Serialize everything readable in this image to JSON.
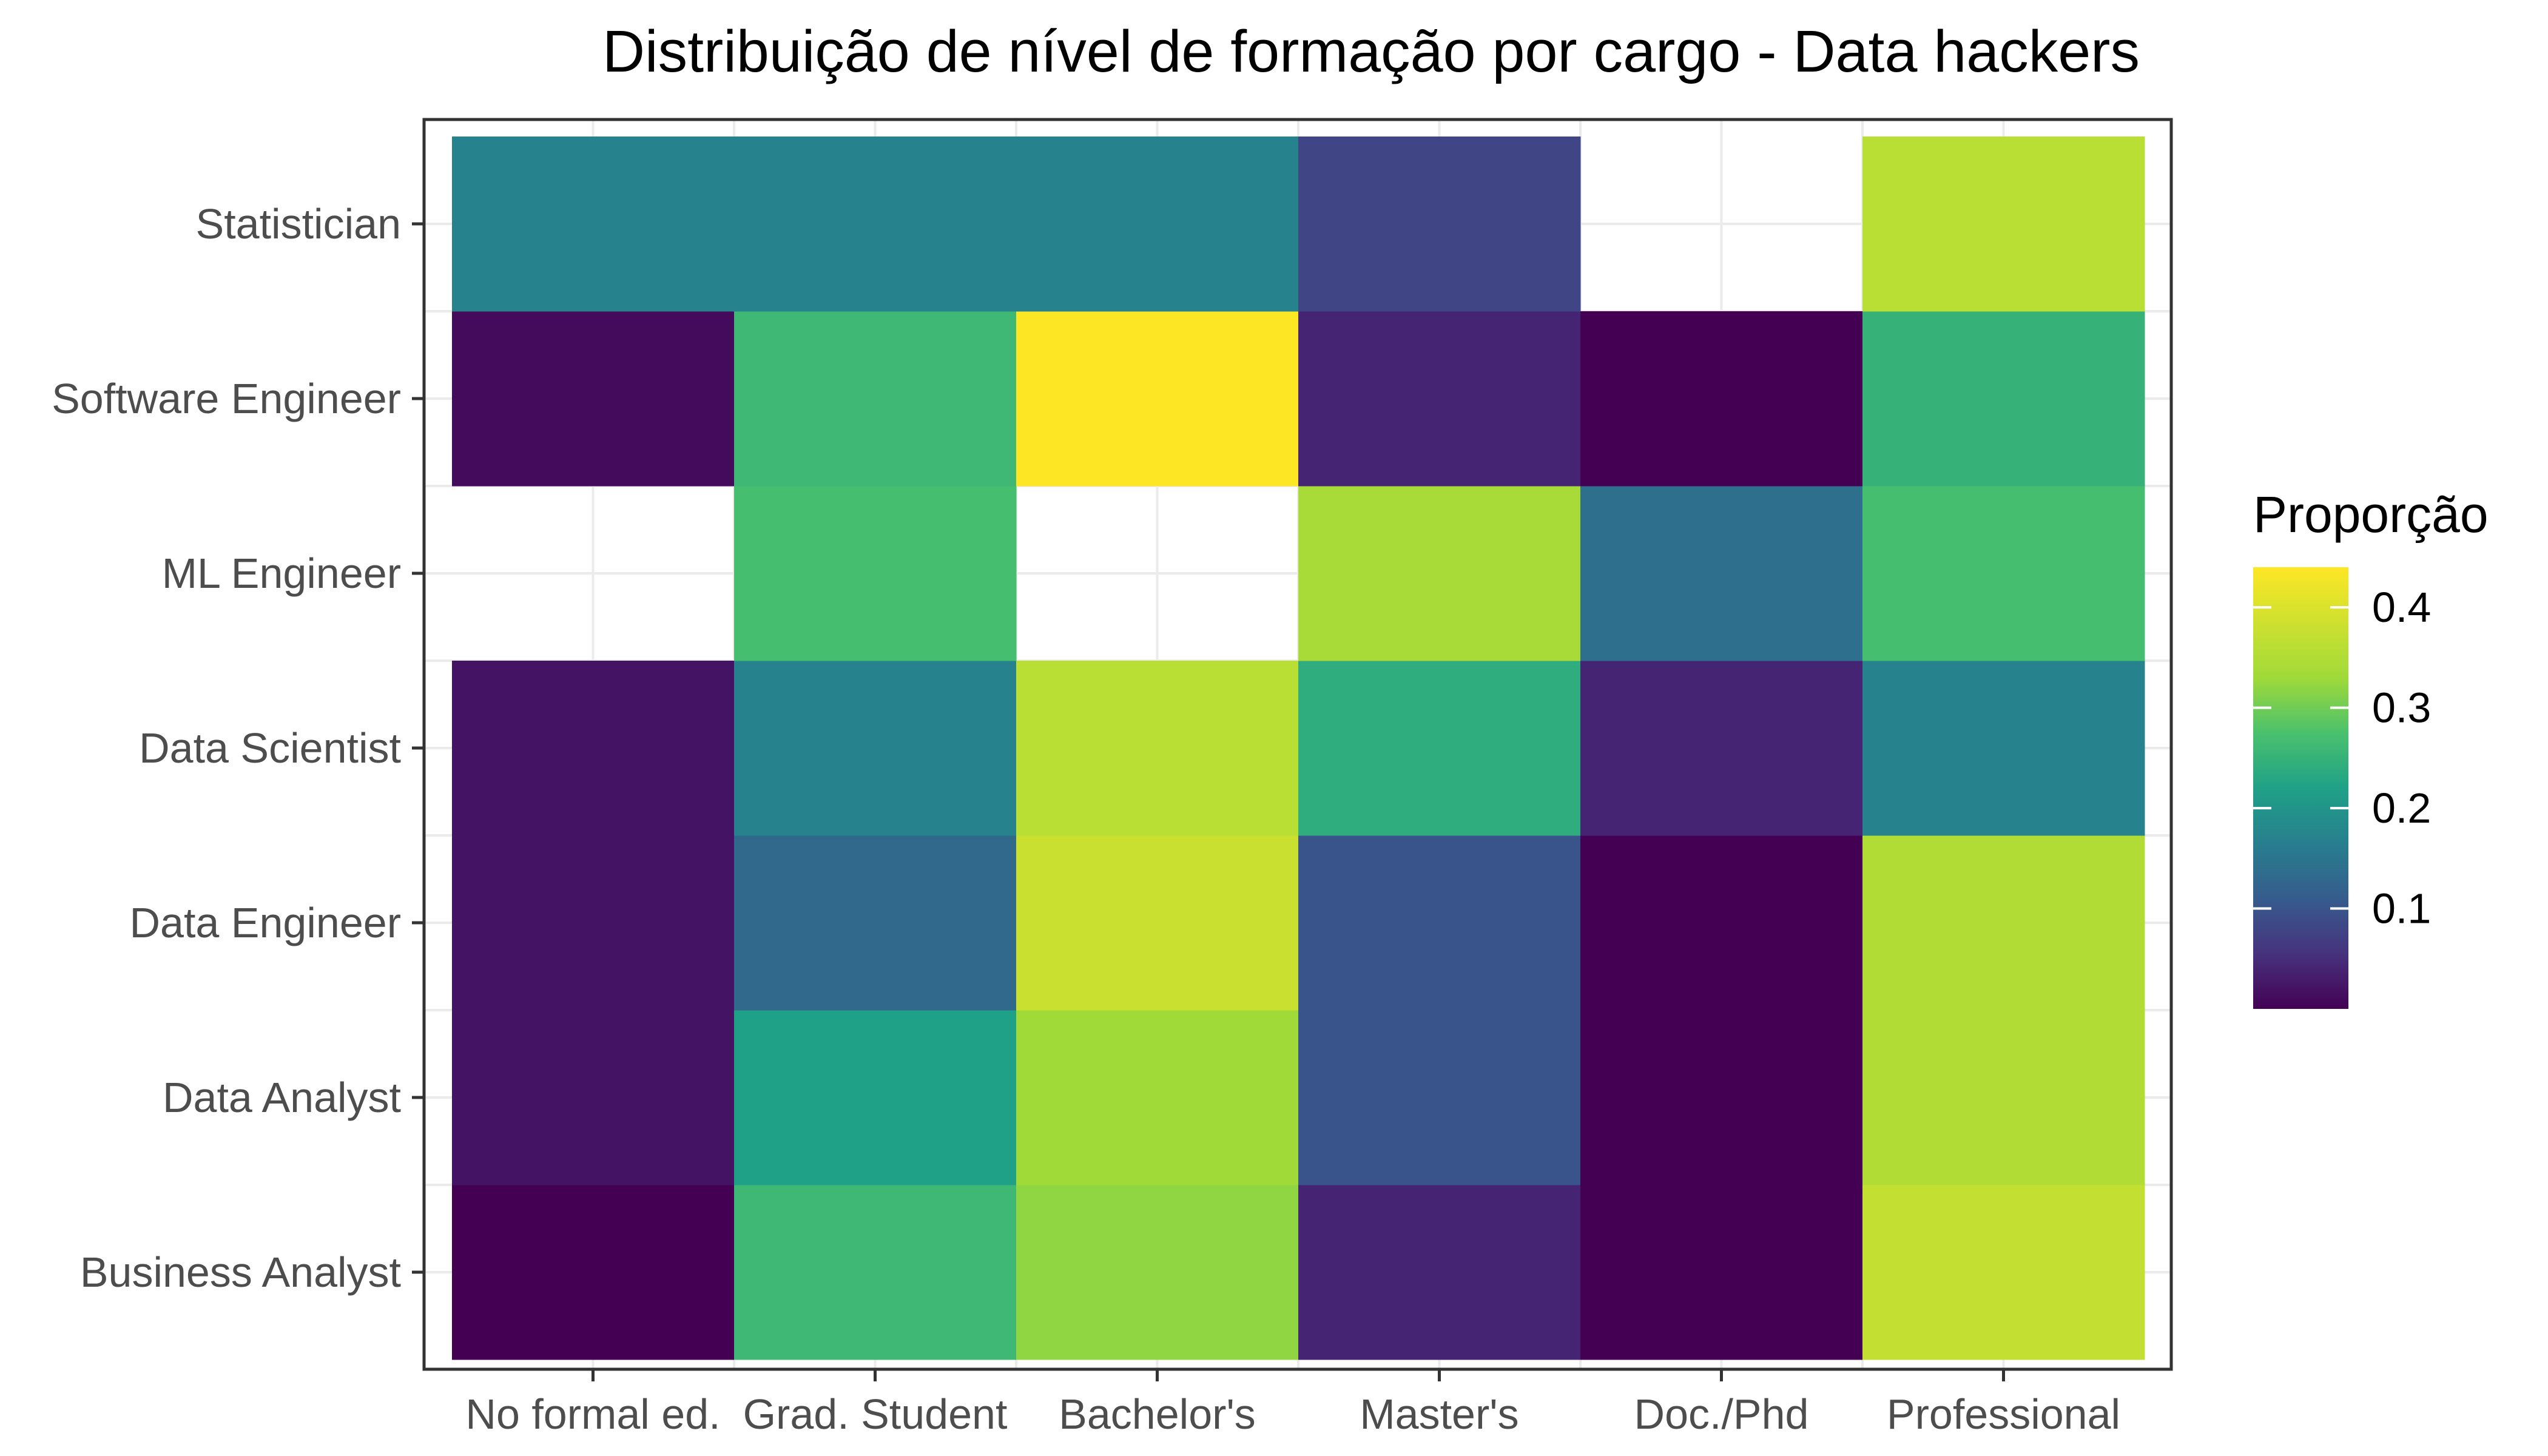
{
  "chart_data": {
    "type": "heatmap",
    "title": "Distribuição de nível de formação por cargo - Data hackers",
    "xlabel": "",
    "ylabel": "",
    "x_categories": [
      "No formal ed.",
      "Grad. Student",
      "Bachelor's",
      "Master's",
      "Doc./Phd",
      "Professional"
    ],
    "y_categories": [
      "Business Analyst",
      "Data Analyst",
      "Data Engineer",
      "Data Scientist",
      "ML Engineer",
      "Software Engineer",
      "Statistician"
    ],
    "values": [
      [
        0.0,
        0.26,
        0.32,
        0.04,
        0.0,
        0.37
      ],
      [
        0.02,
        0.22,
        0.33,
        0.1,
        0.0,
        0.35
      ],
      [
        0.02,
        0.13,
        0.38,
        0.1,
        0.0,
        0.35
      ],
      [
        0.02,
        0.17,
        0.36,
        0.24,
        0.04,
        0.17
      ],
      [
        null,
        0.27,
        null,
        0.34,
        0.14,
        0.27
      ],
      [
        0.01,
        0.26,
        0.44,
        0.04,
        0.0,
        0.25
      ],
      [
        0.17,
        0.17,
        0.17,
        0.08,
        null,
        0.36
      ]
    ],
    "legend": {
      "title": "Proporção",
      "ticks": [
        "0.1",
        "0.2",
        "0.3",
        "0.4"
      ],
      "tick_values": [
        0.1,
        0.2,
        0.3,
        0.4
      ],
      "range": [
        0.0,
        0.44
      ],
      "placement": "right"
    },
    "grid": true,
    "colormap": "viridis",
    "colors": {
      "panel_border": "#333333",
      "grid": "#ebebeb",
      "tick_label": "#4d4d4d",
      "background": "#ffffff"
    }
  }
}
